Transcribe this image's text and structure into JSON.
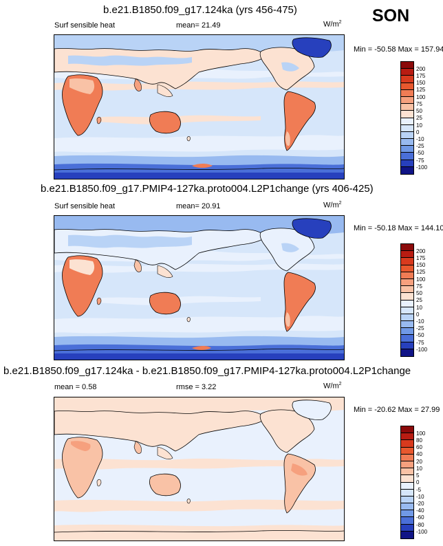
{
  "season": "SON",
  "panels": [
    {
      "title": "b.e21.B1850.f09_g17.124ka (yrs 456-475)",
      "left_label": "Surf sensible heat",
      "center_label": "mean=  21.49",
      "units": "W/m",
      "units_sup": "2",
      "minmax": "Min = -50.58 Max = 157.94",
      "levels": [
        "200",
        "175",
        "150",
        "125",
        "100",
        "75",
        "50",
        "25",
        "10",
        "0",
        "-10",
        "-25",
        "-50",
        "-75",
        "-100"
      ],
      "colors": [
        "#8b0a0a",
        "#b81c12",
        "#d83a1e",
        "#e8582e",
        "#f07c55",
        "#f6a07e",
        "#f9c2a6",
        "#fce2d2",
        "#e9f1fd",
        "#d6e6fa",
        "#b9d3f6",
        "#98baf0",
        "#7099e6",
        "#4a6fd8",
        "#2740bd",
        "#101486"
      ]
    },
    {
      "title": "b.e21.B1850.f09_g17.PMIP4-127ka.proto004.L2P1change (yrs 406-425)",
      "left_label": "Surf sensible heat",
      "center_label": "mean=  20.91",
      "units": "W/m",
      "units_sup": "2",
      "minmax": "Min = -50.18 Max = 144.10",
      "levels": [
        "200",
        "175",
        "150",
        "125",
        "100",
        "75",
        "50",
        "25",
        "10",
        "0",
        "-10",
        "-25",
        "-50",
        "-75",
        "-100"
      ],
      "colors": [
        "#8b0a0a",
        "#b81c12",
        "#d83a1e",
        "#e8582e",
        "#f07c55",
        "#f6a07e",
        "#f9c2a6",
        "#fce2d2",
        "#e9f1fd",
        "#d6e6fa",
        "#b9d3f6",
        "#98baf0",
        "#7099e6",
        "#4a6fd8",
        "#2740bd",
        "#101486"
      ]
    },
    {
      "title": "b.e21.B1850.f09_g17.124ka - b.e21.B1850.f09_g17.PMIP4-127ka.proto004.L2P1change",
      "left_label": "mean =  0.58",
      "center_label": "rmse =  3.22",
      "units": "W/m",
      "units_sup": "2",
      "minmax": "Min = -20.62 Max = 27.99",
      "levels": [
        "100",
        "80",
        "60",
        "40",
        "20",
        "10",
        "5",
        "0",
        "-5",
        "-10",
        "-20",
        "-40",
        "-60",
        "-80",
        "-100"
      ],
      "colors": [
        "#8b0a0a",
        "#b81c12",
        "#d83a1e",
        "#e8582e",
        "#f07c55",
        "#f6a07e",
        "#f9c2a6",
        "#fce2d2",
        "#e9f1fd",
        "#d6e6fa",
        "#b9d3f6",
        "#98baf0",
        "#7099e6",
        "#4a6fd8",
        "#2740bd",
        "#101486"
      ]
    }
  ]
}
